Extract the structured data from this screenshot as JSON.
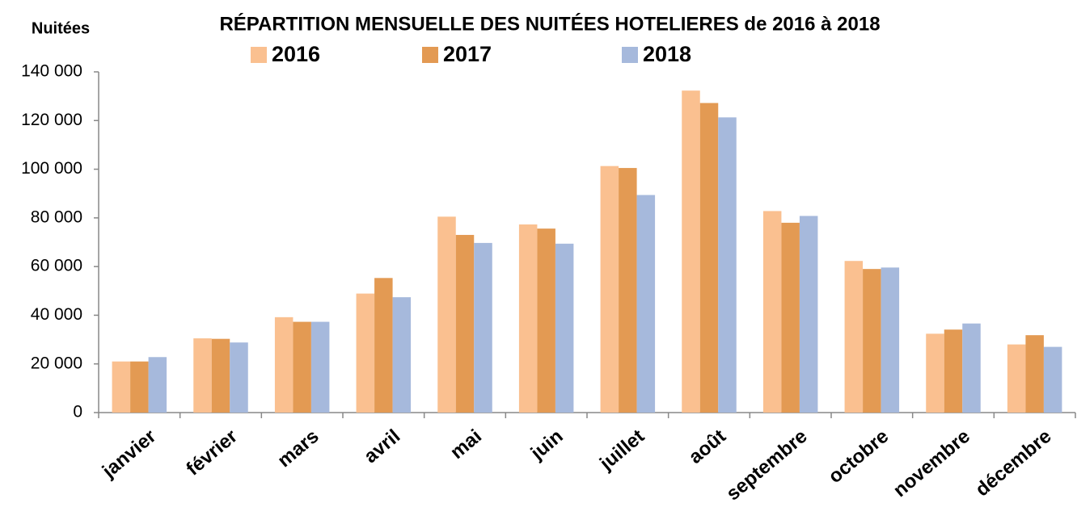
{
  "chart_data": {
    "type": "bar",
    "title": "RÉPARTITION MENSUELLE DES NUITÉES HOTELIERES de 2016 à 2018",
    "y_label": "Nuitées",
    "categories": [
      "janvier",
      "février",
      "mars",
      "avril",
      "mai",
      "juin",
      "juillet",
      "août",
      "septembre",
      "octobre",
      "novembre",
      "décembre"
    ],
    "series": [
      {
        "name": "2016",
        "color": "#fac090",
        "values": [
          21000,
          30500,
          39200,
          48900,
          80500,
          77300,
          101300,
          132300,
          82800,
          62300,
          32400,
          28000
        ]
      },
      {
        "name": "2017",
        "color": "#e39a53",
        "values": [
          21000,
          30300,
          37300,
          55300,
          73000,
          75600,
          100500,
          127200,
          78000,
          59000,
          34100,
          31800
        ]
      },
      {
        "name": "2018",
        "color": "#a6b9dc",
        "values": [
          22800,
          28800,
          37300,
          47400,
          69700,
          69400,
          89400,
          121300,
          80800,
          59600,
          36600,
          27000
        ]
      }
    ],
    "ylim": [
      0,
      140000
    ],
    "yticks": [
      0,
      {
        "value": 20000,
        "label": "20 000"
      },
      {
        "value": 40000,
        "label": "40 000"
      },
      {
        "value": 60000,
        "label": "60 000"
      },
      {
        "value": 80000,
        "label": "80 000"
      },
      {
        "value": 100000,
        "label": "100 000"
      },
      {
        "value": 120000,
        "label": "120 000"
      },
      {
        "value": 140000,
        "label": "140 000"
      }
    ],
    "grid": false,
    "legend": "top"
  }
}
